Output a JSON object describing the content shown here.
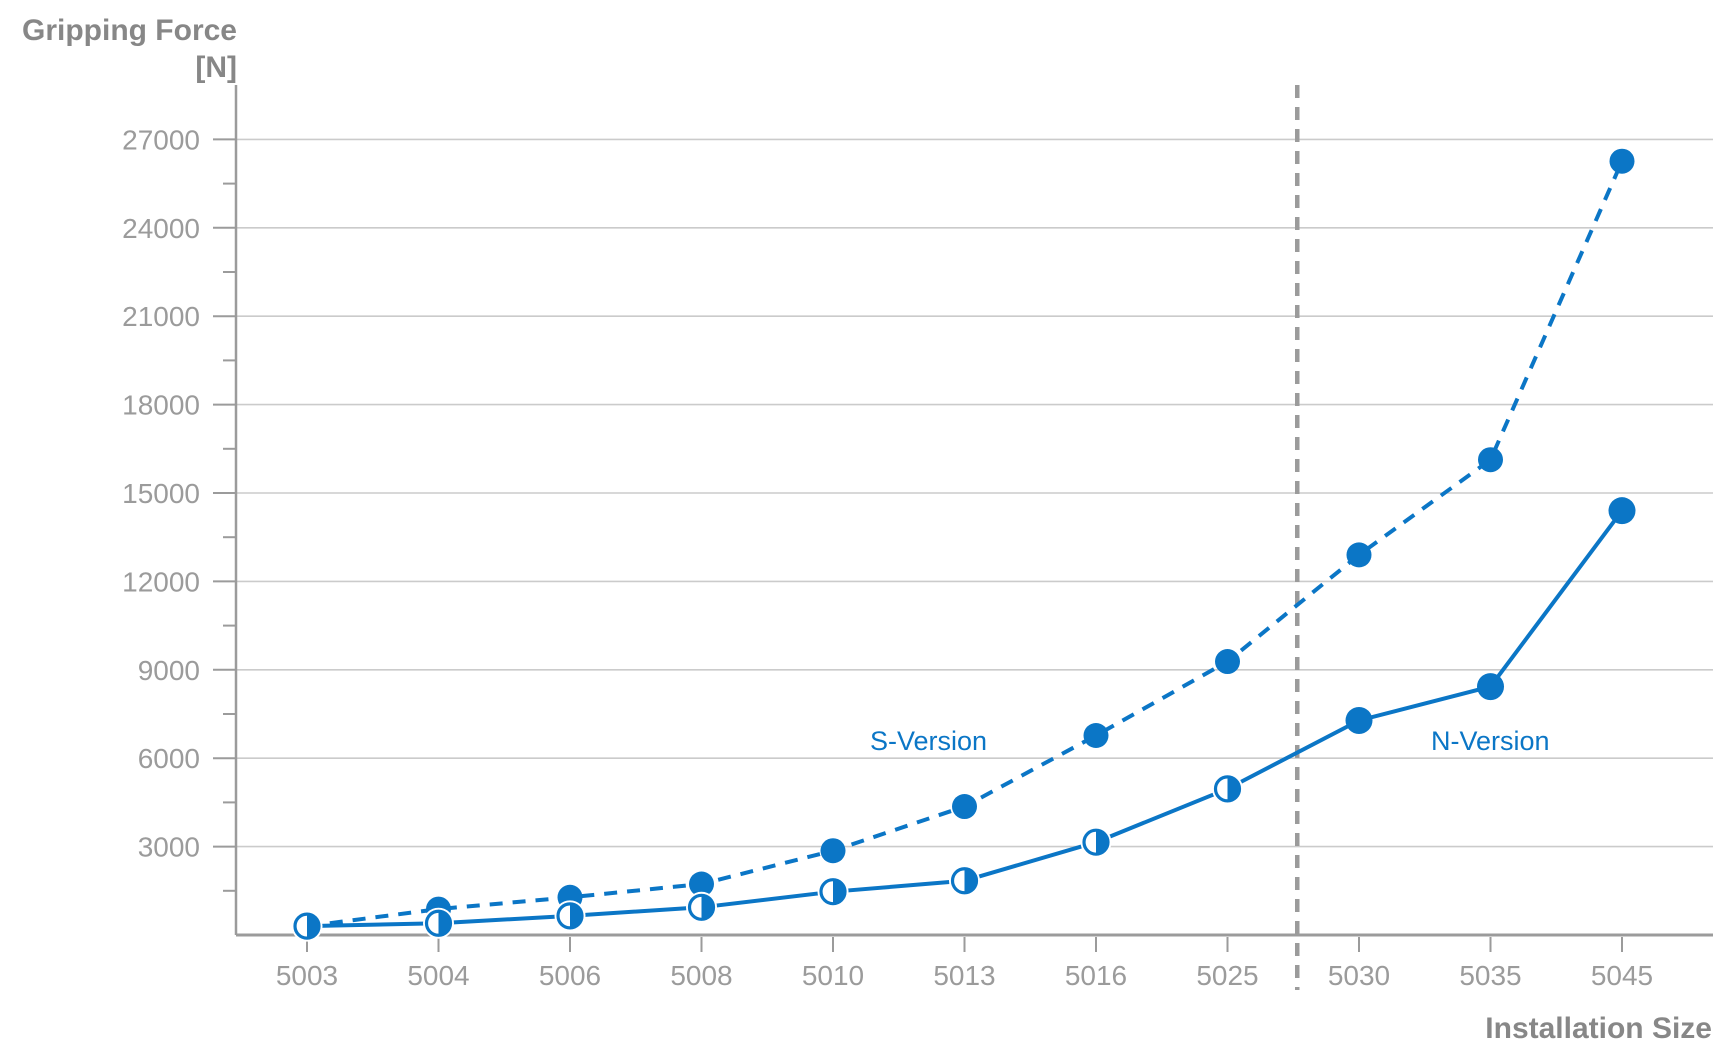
{
  "chart_data": {
    "type": "line",
    "title_line1": "Gripping Force",
    "title_line2": "[N]",
    "xlabel": "Installation Size",
    "categories": [
      "5003",
      "5004",
      "5006",
      "5008",
      "5010",
      "5013",
      "5016",
      "5025",
      "5030",
      "5035",
      "5045"
    ],
    "series": [
      {
        "name": "S-Version",
        "line_style": "dashed",
        "marker": "filled-circle",
        "values": [
          300,
          880,
          1280,
          1730,
          2860,
          4360,
          6770,
          9280,
          12900,
          16130,
          26260
        ]
      },
      {
        "name": "N-Version",
        "line_style": "solid",
        "marker": "half-filled-circle-before-separator-then-filled",
        "values": [
          300,
          400,
          650,
          940,
          1470,
          1840,
          3150,
          4960,
          7280,
          8430,
          14400
        ]
      }
    ],
    "ylim": [
      0,
      28800
    ],
    "yticks": [
      3000,
      6000,
      9000,
      12000,
      15000,
      18000,
      21000,
      24000,
      27000
    ],
    "y_minor_tick_interval": 1500,
    "grid": "horizontal-major-only",
    "separator_between_categories": [
      "5025",
      "5030"
    ],
    "legend_position": "inline-labels-near-lines",
    "colors": {
      "series_blue": "#0B76C6",
      "axis_gray": "#9B9B9B",
      "grid_gray": "#CBCBCB",
      "title_gray": "#878787",
      "tick_label_gray": "#9B9B9B",
      "separator_gray": "#9B9B9B",
      "background": "#FFFFFF"
    }
  }
}
